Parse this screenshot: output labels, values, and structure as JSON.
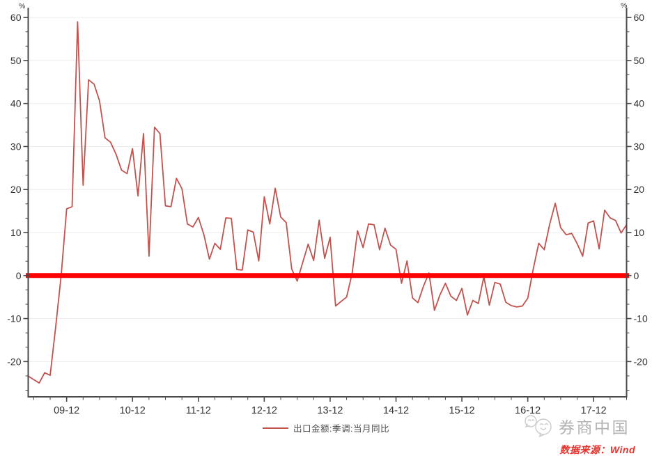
{
  "chart_data": {
    "type": "line",
    "title": "",
    "y_unit": "%",
    "x_tick_labels": [
      "09-12",
      "10-12",
      "11-12",
      "12-12",
      "13-12",
      "14-12",
      "15-12",
      "16-12",
      "17-12"
    ],
    "x_first_major_index": 7,
    "x_months_per_major": 12,
    "x_minor_every_months": 3,
    "y_ticks": [
      -20,
      -10,
      0,
      10,
      20,
      30,
      40,
      50,
      60
    ],
    "y_minor_per_interval": 2,
    "ylim": [
      -28.2,
      61.8
    ],
    "grid": "horizontal-light",
    "legend_position": "bottom-center",
    "zero_line": {
      "value": 0,
      "color": "#ff0000",
      "thickness": 7
    },
    "series": [
      {
        "name": "出口金额:季调:当月同比",
        "color": "#c2524d",
        "start_month": "2009-05",
        "end_month": "2018-06",
        "values": [
          -23.4,
          -24.2,
          -25.0,
          -22.6,
          -23.2,
          -12.0,
          0.0,
          15.5,
          16.0,
          59.0,
          21.0,
          45.5,
          44.5,
          40.6,
          32.0,
          31.0,
          28.2,
          24.5,
          23.7,
          29.5,
          18.5,
          33.0,
          4.5,
          34.5,
          33.0,
          16.2,
          16.0,
          22.6,
          20.2,
          12.0,
          11.3,
          13.5,
          9.5,
          3.8,
          7.5,
          6.1,
          13.4,
          13.3,
          1.4,
          1.3,
          10.6,
          10.1,
          3.4,
          18.3,
          12.0,
          20.3,
          13.6,
          12.3,
          1.5,
          -1.3,
          3.0,
          7.3,
          3.5,
          12.9,
          4.0,
          8.9,
          -7.1,
          -6.0,
          -5.0,
          0.5,
          10.4,
          6.5,
          12.0,
          11.8,
          6.0,
          11.0,
          7.1,
          6.1,
          -1.8,
          3.4,
          -5.2,
          -6.3,
          -2.5,
          0.6,
          -8.1,
          -4.5,
          -1.8,
          -4.8,
          -5.8,
          -3.0,
          -9.2,
          -5.8,
          -6.5,
          -0.3,
          -6.9,
          -1.6,
          -2.0,
          -6.2,
          -7.0,
          -7.3,
          -7.1,
          -5.3,
          1.5,
          7.5,
          6.0,
          12.0,
          16.8,
          11.1,
          9.5,
          9.8,
          7.4,
          4.5,
          12.2,
          12.7,
          6.2,
          15.2,
          13.4,
          12.8,
          9.9,
          11.8
        ]
      }
    ]
  },
  "axis_units": {
    "left": "%",
    "right": "%"
  },
  "legend": {
    "label": "出口金额:季调:当月同比"
  },
  "footer": {
    "brand": "券商中国",
    "source": "数据来源：Wind"
  },
  "colors": {
    "series": "#c2524d",
    "zero_line": "#ff0000",
    "grid": "#ececec",
    "axis": "#4a4a4a",
    "tick_label": "#333333",
    "brand_gray": "#b3b3b3",
    "source_red": "#e8312b"
  }
}
